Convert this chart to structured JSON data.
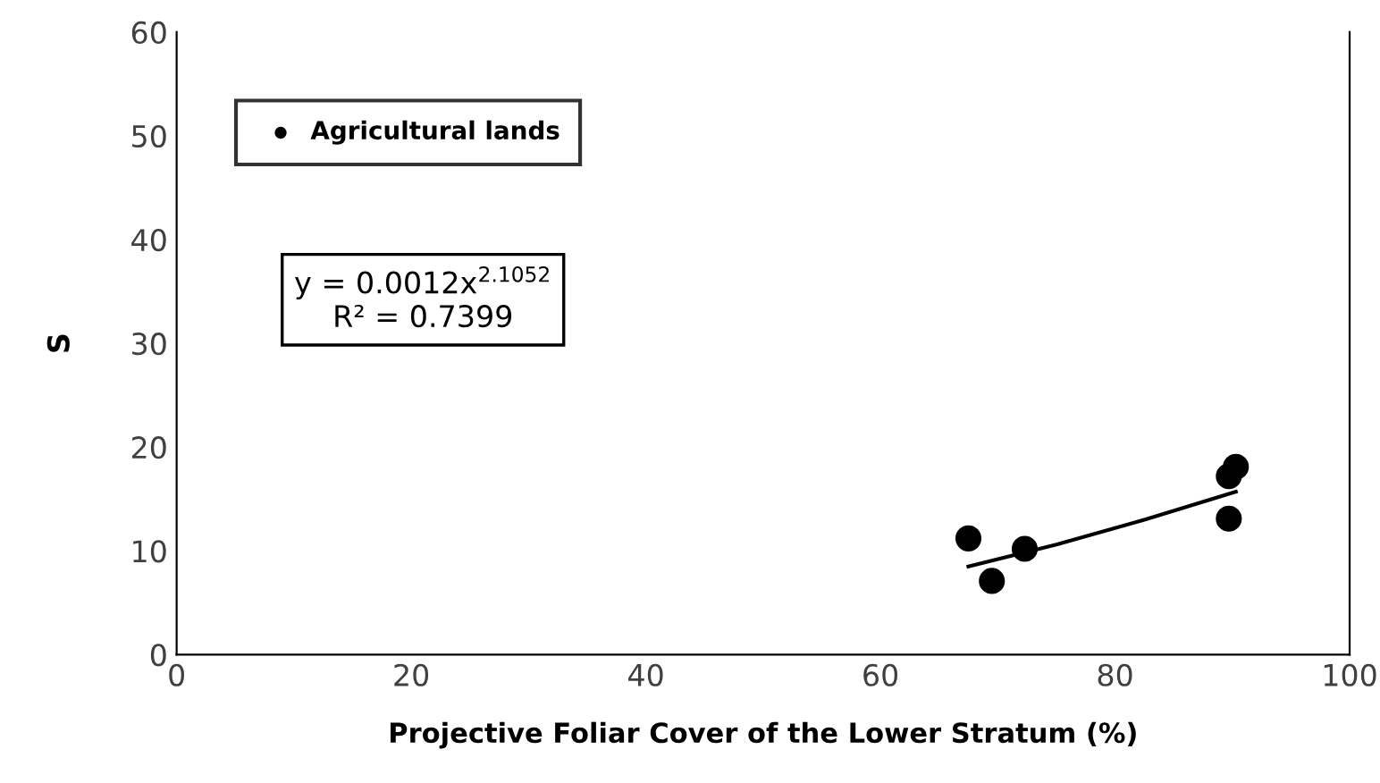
{
  "chart_data": {
    "type": "scatter",
    "xlabel": "Projective Foliar Cover of the Lower Stratum (%)",
    "ylabel": "S",
    "xlim": [
      0,
      100
    ],
    "xticks": [
      0,
      20,
      40,
      60,
      80,
      100
    ],
    "ylim": [
      0,
      60
    ],
    "yticks": [
      0,
      10,
      20,
      30,
      40,
      50,
      60
    ],
    "grid": false,
    "legend": "top left",
    "series": [
      {
        "name": "Agricultural lands",
        "color": "#000000",
        "marker": "circle",
        "x": [
          67.5,
          69.5,
          72.3,
          89.7,
          89.7,
          90.3
        ],
        "values": [
          11.2,
          7.1,
          10.2,
          13.1,
          17.2,
          18.1
        ]
      },
      {
        "type": "line",
        "color": "#000000",
        "marker": "none",
        "x": [
          67.5,
          75,
          82.5,
          90.3
        ],
        "values": [
          8.5,
          10.6,
          13.0,
          15.7
        ]
      }
    ],
    "annotations": [
      "y = 0.0012x$^{2.1052}$\nR² = 0.7399"
    ]
  }
}
